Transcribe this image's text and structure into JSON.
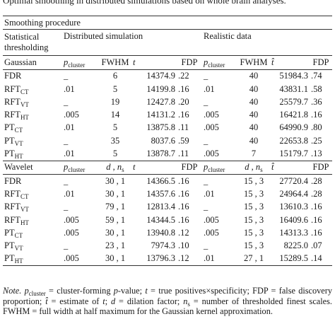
{
  "caption": "Optimal smoothing in distributed simulations based on whole brain analyses.",
  "table": {
    "group_header": "Smoothing procedure",
    "stat_header": [
      "Statistical",
      "thresholding"
    ],
    "span_headers": [
      "Distributed simulation",
      "Realistic data"
    ],
    "sections": [
      {
        "columns": [
          "Gaussian",
          {
            "base": "p",
            "sub": "cluster"
          },
          "FWHM",
          {
            "base": "t"
          },
          "FDP",
          {
            "base": "p",
            "sub": "cluster"
          },
          "FWHM",
          {
            "base": "t̂"
          },
          "FDP"
        ],
        "rows": [
          {
            "label": {
              "base": "FDR"
            },
            "cells": [
              "_",
              "6",
              "14374.9",
              ".22",
              "_",
              "40",
              "51984.3",
              ".74"
            ]
          },
          {
            "label": {
              "base": "RFT",
              "sub": "CT"
            },
            "cells": [
              ".01",
              "5",
              "14199.8",
              ".16",
              ".01",
              "40",
              "43831.1",
              ".58"
            ]
          },
          {
            "label": {
              "base": "RFT",
              "sub": "VT"
            },
            "cells": [
              "_",
              "19",
              "12427.8",
              ".20",
              "_",
              "40",
              "25579.7",
              ".36"
            ]
          },
          {
            "label": {
              "base": "RFT",
              "sub": "HT"
            },
            "cells": [
              ".005",
              "14",
              "14131.2",
              ".16",
              ".005",
              "40",
              "16421.8",
              ".16"
            ]
          },
          {
            "label": {
              "base": "PT",
              "sub": "CT"
            },
            "cells": [
              ".01",
              "5",
              "13875.8",
              ".11",
              ".005",
              "40",
              "64990.9",
              ".80"
            ]
          },
          {
            "label": {
              "base": "PT",
              "sub": "VT"
            },
            "cells": [
              "_",
              "35",
              "8037.6",
              ".59",
              "_",
              "40",
              "22653.8",
              ".25"
            ]
          },
          {
            "label": {
              "base": "PT",
              "sub": "HT"
            },
            "cells": [
              ".01",
              "5",
              "13878.7",
              ".11",
              ".005",
              "7",
              "15179.7",
              ".13"
            ]
          }
        ]
      },
      {
        "columns": [
          "Wavelet",
          {
            "base": "p",
            "sub": "cluster"
          },
          {
            "base": "d , n",
            "sub": "s"
          },
          {
            "base": "t"
          },
          "FDP",
          {
            "base": "p",
            "sub": "cluster"
          },
          {
            "base": "d , n",
            "sub": "s"
          },
          {
            "base": "t̂"
          },
          "FDP"
        ],
        "rows": [
          {
            "label": {
              "base": "FDR"
            },
            "cells": [
              "_",
              "30 , 1",
              "14366.5",
              ".16",
              "_",
              "15 , 3",
              "27720.4",
              ".28"
            ]
          },
          {
            "label": {
              "base": "RFT",
              "sub": "CT"
            },
            "cells": [
              ".01",
              "30 , 1",
              "14357.6",
              ".16",
              ".01",
              "15 , 3",
              "24964.4",
              ".28"
            ]
          },
          {
            "label": {
              "base": "RFT",
              "sub": "VT"
            },
            "cells": [
              "_",
              "79 , 1",
              "12813.4",
              ".16",
              "_",
              "15 , 3",
              "13610.3",
              ".16"
            ]
          },
          {
            "label": {
              "base": "RFT",
              "sub": "HT"
            },
            "cells": [
              ".005",
              "59 , 1",
              "14344.5",
              ".16",
              ".005",
              "15 , 3",
              "16409.6",
              ".16"
            ]
          },
          {
            "label": {
              "base": "PT",
              "sub": "CT"
            },
            "cells": [
              ".005",
              "30 , 1",
              "13940.8",
              ".12",
              ".005",
              "15 , 3",
              "14313.3",
              ".16"
            ]
          },
          {
            "label": {
              "base": "PT",
              "sub": "VT"
            },
            "cells": [
              "_",
              "23 , 1",
              "7974.3",
              ".10",
              "_",
              "15 , 3",
              "8225.0",
              ".07"
            ]
          },
          {
            "label": {
              "base": "PT",
              "sub": "HT"
            },
            "cells": [
              ".005",
              "30 , 1",
              "13796.3",
              ".12",
              ".01",
              "27 , 1",
              "15289.5",
              ".14"
            ]
          }
        ]
      }
    ]
  },
  "note": [
    "Note.",
    "p",
    "cluster",
    " = cluster-forming ",
    "p",
    "-value; ",
    "t",
    " = true positives×specificity; FDP = false discovery proportion; ",
    "t̂",
    " = estimate of ",
    "t",
    "; ",
    "d",
    " = dilation factor; ",
    "n",
    "s",
    " = number of thresholded finest scales. FWHM = full width at half maximum for the Gaussian kernel approximation."
  ]
}
